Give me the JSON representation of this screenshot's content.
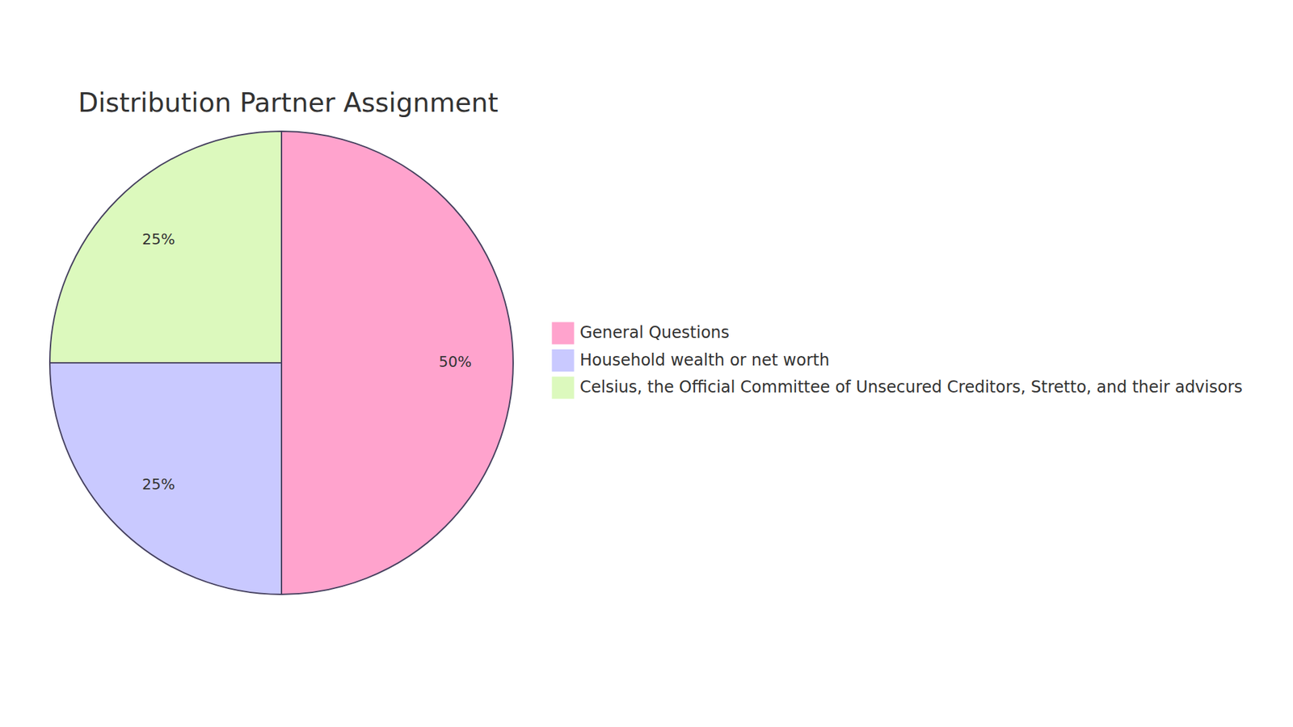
{
  "chart_data": {
    "type": "pie",
    "title": "Distribution Partner Assignment",
    "categories": [
      "General Questions",
      "Household wealth or net worth",
      "Celsius, the Official Committee of Unsecured Creditors, Stretto, and their advisors"
    ],
    "values": [
      50,
      25,
      25
    ],
    "value_labels": [
      "50%",
      "25%",
      "25%"
    ],
    "colors": [
      "#ffa3cd",
      "#c9c9ff",
      "#dcf9bd"
    ],
    "data_labels": true,
    "legend": "right"
  }
}
